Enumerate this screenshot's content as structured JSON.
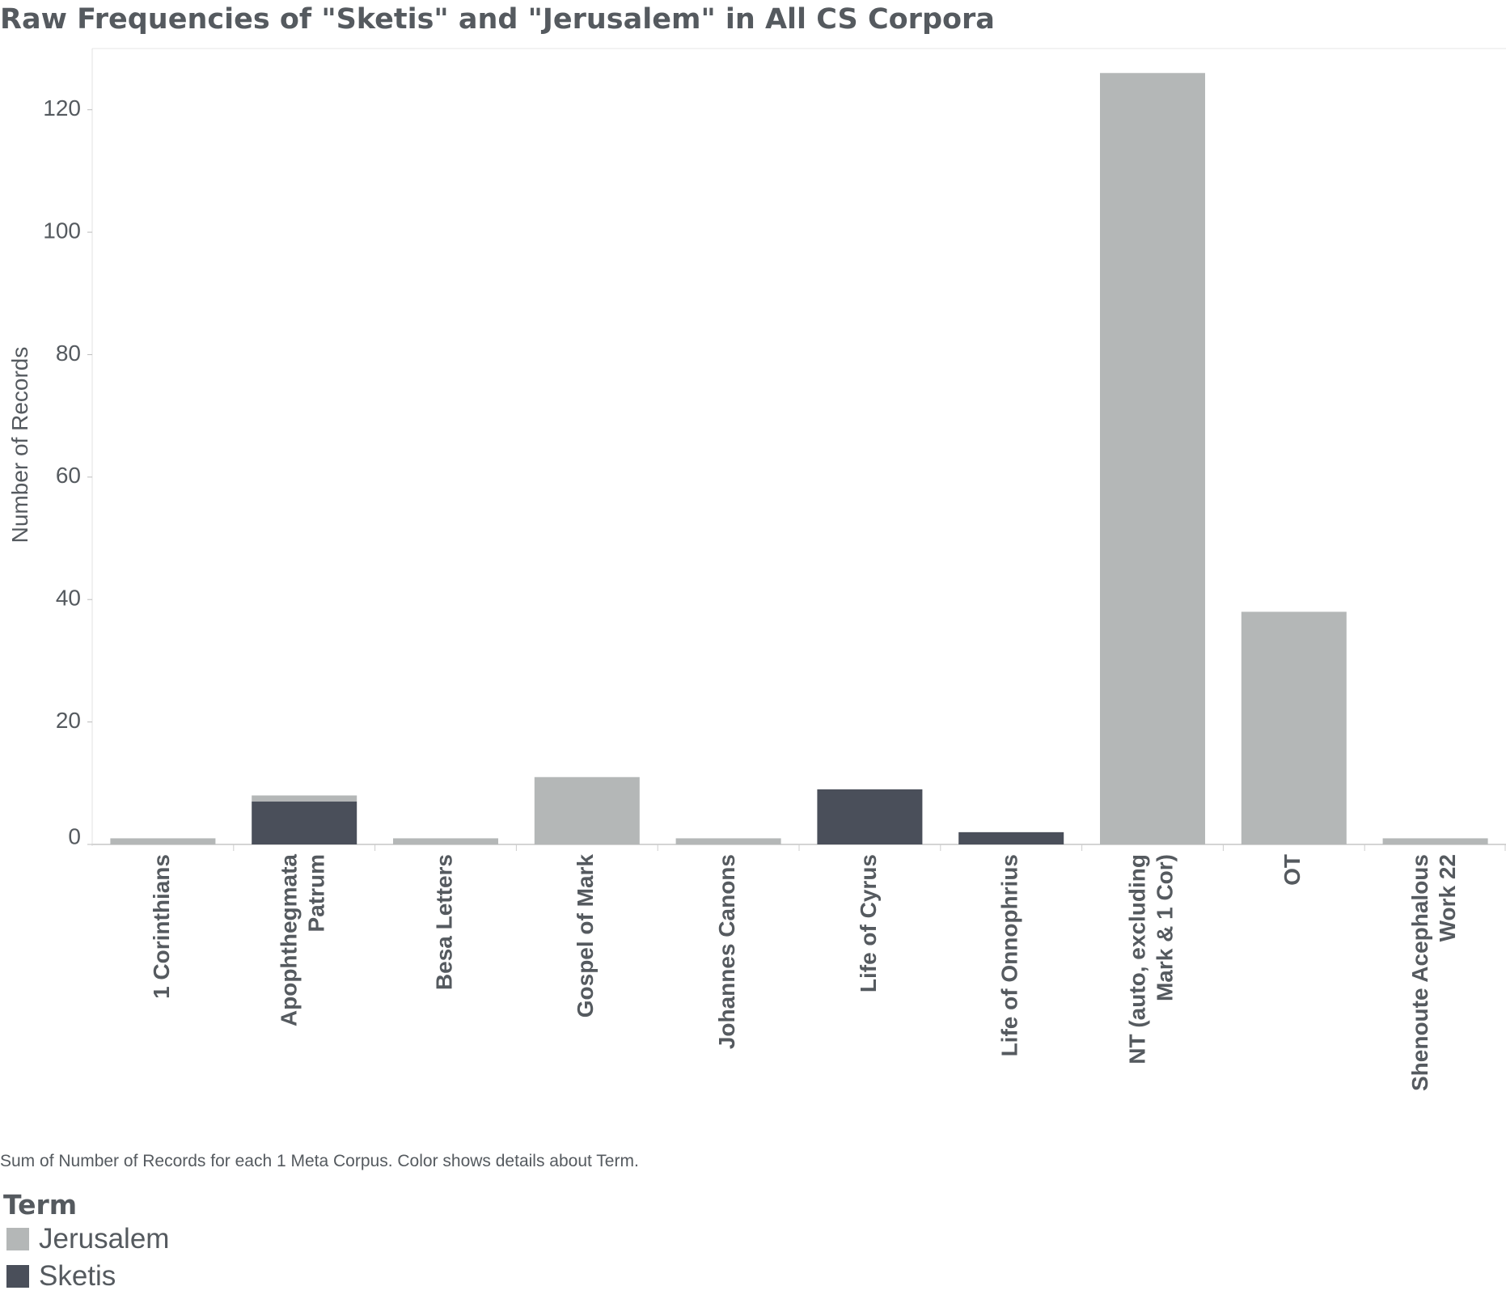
{
  "chart_data": {
    "type": "bar",
    "stacked": true,
    "title": "Raw Frequencies of \"Sketis\" and \"Jerusalem\" in All CS Corpora",
    "xlabel": "",
    "ylabel": "Number of Records",
    "ylim": [
      0,
      130
    ],
    "yticks": [
      0,
      20,
      40,
      60,
      80,
      100,
      120
    ],
    "categories": [
      [
        "1 Corinthians"
      ],
      [
        "Apophthegmata",
        "Patrum"
      ],
      [
        "Besa Letters"
      ],
      [
        "Gospel of Mark"
      ],
      [
        "Johannes Canons"
      ],
      [
        "Life of Cyrus"
      ],
      [
        "Life of Onnophrius"
      ],
      [
        "NT (auto, excluding",
        "Mark & 1 Cor)"
      ],
      [
        "OT"
      ],
      [
        "Shenoute Acephalous",
        "Work 22"
      ]
    ],
    "series": [
      {
        "name": "Sketis",
        "color": "#4a4f5a",
        "values": [
          0,
          7,
          0,
          0,
          0,
          9,
          2,
          0,
          0,
          0
        ]
      },
      {
        "name": "Jerusalem",
        "color": "#b4b7b7",
        "values": [
          1,
          1,
          1,
          11,
          1,
          0,
          0,
          126,
          38,
          1
        ]
      }
    ],
    "grid": false,
    "legend": {
      "title": "Term",
      "position": "bottom-left",
      "items": [
        "Jerusalem",
        "Sketis"
      ]
    },
    "footnote": "Sum of Number of Records for each 1 Meta Corpus.  Color shows details about Term."
  }
}
